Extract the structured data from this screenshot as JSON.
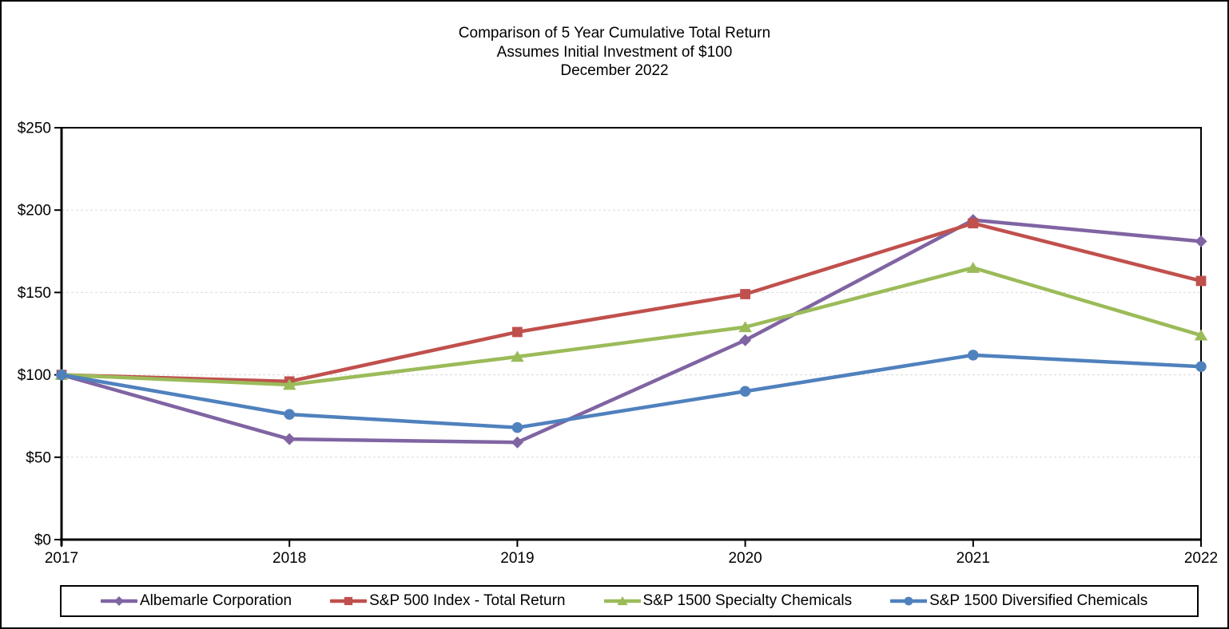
{
  "title": {
    "line1": "Comparison of 5 Year Cumulative Total Return",
    "line2": "Assumes Initial Investment of $100",
    "line3": "December 2022"
  },
  "chart_data": {
    "type": "line",
    "title": "Comparison of 5 Year Cumulative Total Return",
    "subtitle": "Assumes Initial Investment of $100",
    "period_label": "December 2022",
    "categories": [
      "2017",
      "2018",
      "2019",
      "2020",
      "2021",
      "2022"
    ],
    "series": [
      {
        "name": "Albemarle Corporation",
        "color": "#8064A2",
        "marker": "diamond",
        "values": [
          100,
          61,
          59,
          121,
          194,
          181
        ]
      },
      {
        "name": "S&P 500 Index - Total Return",
        "color": "#C0504D",
        "marker": "square",
        "values": [
          100,
          96,
          126,
          149,
          192,
          157
        ]
      },
      {
        "name": "S&P 1500 Specialty Chemicals",
        "color": "#9BBB59",
        "marker": "triangle",
        "values": [
          100,
          94,
          111,
          129,
          165,
          124
        ]
      },
      {
        "name": "S&P 1500 Diversified Chemicals",
        "color": "#4F81BD",
        "marker": "circle",
        "values": [
          100,
          76,
          68,
          90,
          112,
          105
        ]
      }
    ],
    "y_axis": {
      "tick_labels": [
        "$0",
        "$50",
        "$100",
        "$150",
        "$200",
        "$250"
      ],
      "tick_values": [
        0,
        50,
        100,
        150,
        200,
        250
      ],
      "min": 0,
      "max": 250
    },
    "x_axis_label": "",
    "y_axis_label": "",
    "grid": "horizontal-dashed",
    "gridline_color": "#D9D9D9",
    "axis_color": "#000000",
    "legend_position": "bottom"
  }
}
